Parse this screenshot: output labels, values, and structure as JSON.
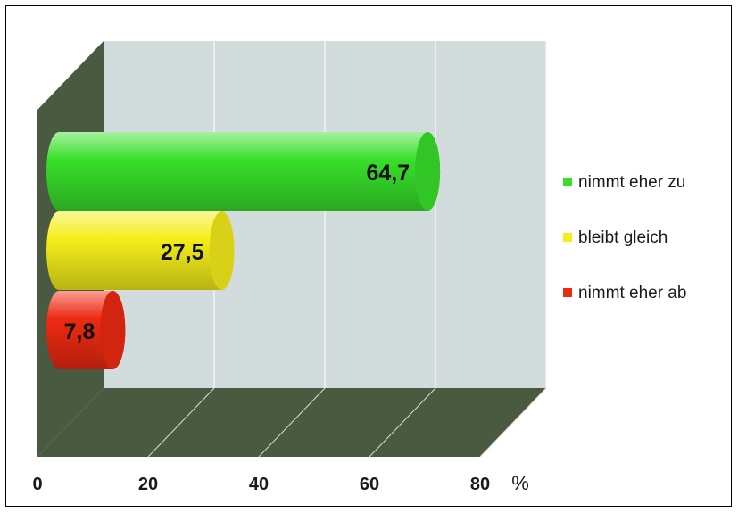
{
  "chart_data": {
    "type": "bar",
    "orientation": "horizontal",
    "style": "3d-cylinder",
    "categories": [
      "nimmt eher zu",
      "bleibt gleich",
      "nimmt eher ab"
    ],
    "values": [
      64.7,
      27.5,
      7.8
    ],
    "value_labels": [
      "64,7",
      "27,5",
      "7,8"
    ],
    "colors": [
      "#38e02a",
      "#f5ee1a",
      "#ee2a12"
    ],
    "xlim": [
      0,
      80
    ],
    "x_ticks": [
      "0",
      "20",
      "40",
      "60",
      "80"
    ],
    "unit": "%",
    "grid": true,
    "legend_position": "right",
    "legend": [
      {
        "label": "nimmt eher zu",
        "color": "#38e02a"
      },
      {
        "label": "bleibt gleich",
        "color": "#f5ee1a"
      },
      {
        "label": "nimmt eher ab",
        "color": "#ee2a12"
      }
    ],
    "wall_color": "#d2dcdc",
    "floor_color": "#4a5a40"
  }
}
